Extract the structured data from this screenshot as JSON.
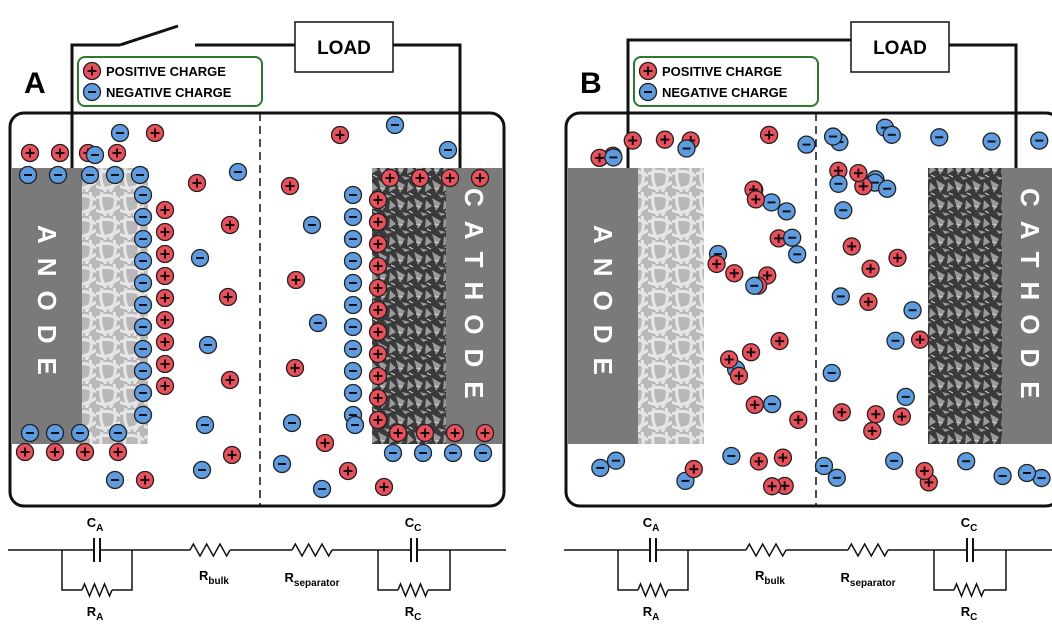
{
  "panels": [
    {
      "label": "A",
      "load": "LOAD",
      "legend": {
        "positive": "POSITIVE CHARGE",
        "negative": "NEGATIVE CHARGE"
      },
      "anode": "ANODE",
      "cathode": "CATHODE",
      "circuit": {
        "ca": {
          "main": "C",
          "sub": "A"
        },
        "ra": {
          "main": "R",
          "sub": "A"
        },
        "rbulk": {
          "main": "R",
          "sub": "bulk"
        },
        "rsep": {
          "main": "R",
          "sub": "separator"
        },
        "cc": {
          "main": "C",
          "sub": "C"
        },
        "rc": {
          "main": "R",
          "sub": "C"
        }
      }
    },
    {
      "label": "B",
      "load": "LOAD",
      "legend": {
        "positive": "POSITIVE CHARGE",
        "negative": "NEGATIVE CHARGE"
      },
      "anode": "ANODE",
      "cathode": "CATHODE",
      "circuit": {
        "ca": {
          "main": "C",
          "sub": "A"
        },
        "ra": {
          "main": "R",
          "sub": "A"
        },
        "rbulk": {
          "main": "R",
          "sub": "bulk"
        },
        "rsep": {
          "main": "R",
          "sub": "separator"
        },
        "cc": {
          "main": "C",
          "sub": "C"
        },
        "rc": {
          "main": "R",
          "sub": "C"
        }
      }
    }
  ]
}
